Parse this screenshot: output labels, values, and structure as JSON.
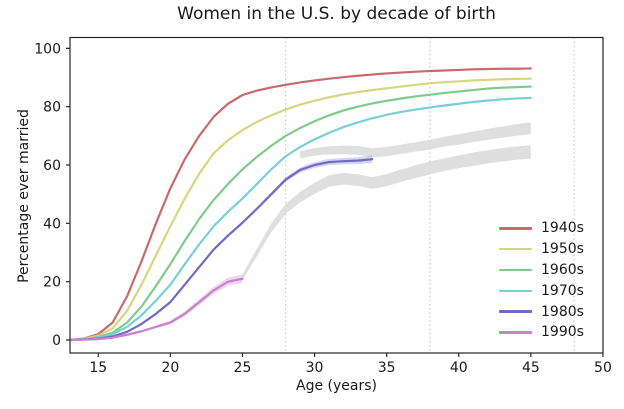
{
  "chart_data": {
    "type": "line",
    "title": "Women in the U.S. by decade of birth",
    "xlabel": "Age (years)",
    "ylabel": "Percentage ever married",
    "xlim": [
      13,
      50
    ],
    "ylim": [
      -5,
      104
    ],
    "xticks": [
      15,
      20,
      25,
      30,
      35,
      40,
      45,
      50
    ],
    "yticks": [
      0,
      20,
      40,
      60,
      80,
      100
    ],
    "vlines_dotted_x": [
      28,
      38,
      48
    ],
    "grid": "vertical dotted reference lines only",
    "legend_position": "lower right",
    "series": [
      {
        "name": "1940s",
        "color": "#c8696e",
        "x": [
          13,
          14,
          15,
          16,
          17,
          18,
          19,
          20,
          21,
          22,
          23,
          24,
          25,
          26,
          27,
          28,
          29,
          30,
          31,
          32,
          33,
          34,
          35,
          36,
          37,
          38,
          39,
          40,
          41,
          42,
          43,
          44,
          45
        ],
        "y": [
          0,
          0.5,
          2,
          6,
          15,
          27,
          40,
          52,
          62,
          70,
          76.5,
          81,
          84,
          85.5,
          86.6,
          87.5,
          88.3,
          89,
          89.6,
          90.1,
          90.6,
          91,
          91.4,
          91.7,
          92,
          92.2,
          92.4,
          92.6,
          92.8,
          92.9,
          93,
          93,
          93.1
        ]
      },
      {
        "name": "1950s",
        "color": "#d4d77e",
        "x": [
          13,
          14,
          15,
          16,
          17,
          18,
          19,
          20,
          21,
          22,
          23,
          24,
          25,
          26,
          27,
          28,
          29,
          30,
          31,
          32,
          33,
          34,
          35,
          36,
          37,
          38,
          39,
          40,
          41,
          42,
          43,
          44,
          45
        ],
        "y": [
          0,
          0.4,
          1.5,
          4,
          10,
          19,
          29,
          39,
          48.5,
          57,
          64,
          68.5,
          72,
          74.8,
          77,
          79,
          80.7,
          82,
          83.2,
          84.2,
          85,
          85.7,
          86.3,
          86.9,
          87.5,
          88,
          88.4,
          88.7,
          89,
          89.2,
          89.4,
          89.5,
          89.6
        ]
      },
      {
        "name": "1960s",
        "color": "#7fcb8c",
        "x": [
          13,
          14,
          15,
          16,
          17,
          18,
          19,
          20,
          21,
          22,
          23,
          24,
          25,
          26,
          27,
          28,
          29,
          30,
          31,
          32,
          33,
          34,
          35,
          36,
          37,
          38,
          39,
          40,
          41,
          42,
          43,
          44,
          45
        ],
        "y": [
          0,
          0.3,
          1,
          2.5,
          6,
          11.5,
          18.5,
          26,
          34,
          41.5,
          48,
          53.5,
          58.5,
          62.8,
          66.6,
          70,
          72.7,
          75,
          77,
          78.7,
          80,
          81.1,
          82,
          82.8,
          83.5,
          84.1,
          84.7,
          85.2,
          85.7,
          86.2,
          86.5,
          86.7,
          86.9
        ]
      },
      {
        "name": "1970s",
        "color": "#79cfd5",
        "x": [
          13,
          14,
          15,
          16,
          17,
          18,
          19,
          20,
          21,
          22,
          23,
          24,
          25,
          26,
          27,
          28,
          29,
          30,
          31,
          32,
          33,
          34,
          35,
          36,
          37,
          38,
          39,
          40,
          41,
          42,
          43,
          44,
          45
        ],
        "y": [
          0,
          0.3,
          0.8,
          2,
          4.5,
          8.5,
          13.5,
          19,
          26,
          32.8,
          39,
          44,
          48.5,
          53.5,
          58.5,
          63,
          66.2,
          68.8,
          71,
          73,
          74.6,
          76,
          77.2,
          78.2,
          79,
          79.7,
          80.4,
          81,
          81.6,
          82.1,
          82.5,
          82.8,
          83
        ]
      },
      {
        "name": "1980s",
        "color": "#6f6ac4",
        "x": [
          13,
          14,
          15,
          16,
          17,
          18,
          19,
          20,
          21,
          22,
          23,
          24,
          25,
          26,
          27,
          28,
          29,
          30,
          31,
          32,
          33,
          34
        ],
        "y": [
          0,
          0.2,
          0.5,
          1.2,
          2.8,
          5.5,
          9,
          13,
          19,
          25,
          31,
          35.8,
          40.2,
          45,
          50,
          55,
          58.3,
          60,
          61,
          61.3,
          61.5,
          62
        ]
      },
      {
        "name": "1990s",
        "color": "#c981cf",
        "x": [
          13,
          14,
          15,
          16,
          17,
          18,
          19,
          20,
          21,
          22,
          23,
          24,
          25
        ],
        "y": [
          0,
          0.1,
          0.3,
          0.8,
          1.8,
          3,
          4.5,
          6,
          9,
          13,
          17,
          20,
          21
        ]
      }
    ],
    "uncertainty_bands": [
      {
        "label": "1980s projection",
        "color": "#dcdcdc",
        "opacity": 0.9,
        "x": [
          29,
          30,
          31,
          32,
          33,
          34,
          35,
          36,
          37,
          38,
          39,
          40,
          41,
          42,
          43,
          44,
          45
        ],
        "center": [
          63.5,
          64.5,
          65,
          65.2,
          65,
          64.2,
          64.6,
          65.4,
          66.2,
          67,
          68,
          68.8,
          69.7,
          70.5,
          71.3,
          72,
          72.6
        ],
        "half_width": [
          1.2,
          1.3,
          1.4,
          1.5,
          1.5,
          1.5,
          1.6,
          1.6,
          1.6,
          1.7,
          1.7,
          1.8,
          1.8,
          1.9,
          1.9,
          2,
          2
        ]
      },
      {
        "label": "1990s projection",
        "color": "#dcdcdc",
        "opacity": 0.9,
        "x": [
          25,
          26,
          27,
          28,
          29,
          30,
          31,
          32,
          33,
          34,
          35,
          36,
          37,
          38,
          39,
          40,
          41,
          42,
          43,
          44,
          45
        ],
        "center": [
          21.5,
          30,
          38.5,
          45,
          49,
          52,
          54.5,
          55.3,
          54.8,
          53.8,
          54.8,
          56.3,
          57.7,
          59,
          60.1,
          61.1,
          62,
          62.8,
          63.5,
          64.1,
          64.5
        ],
        "half_width": [
          1,
          1.3,
          1.5,
          1.7,
          1.8,
          1.9,
          2,
          2,
          2,
          2,
          2.1,
          2.1,
          2.2,
          2.2,
          2.2,
          2.2,
          2.3,
          2.3,
          2.3,
          2.3,
          2.3
        ]
      },
      {
        "label": "1980s observed CI",
        "color": "#6f6ac4",
        "opacity": 0.28,
        "x": [
          26,
          27,
          28,
          29,
          30,
          31,
          32,
          33,
          34
        ],
        "center": [
          45,
          50,
          55,
          58.3,
          60,
          61,
          61.3,
          61.5,
          62
        ],
        "half_width": [
          0.5,
          0.6,
          0.8,
          0.9,
          1,
          1.1,
          1.1,
          1.2,
          1.3
        ]
      },
      {
        "label": "1990s observed CI",
        "color": "#c981cf",
        "opacity": 0.32,
        "x": [
          19,
          20,
          21,
          22,
          23,
          24,
          25
        ],
        "center": [
          4.5,
          6,
          9,
          13,
          17,
          20,
          21
        ],
        "half_width": [
          0.5,
          0.6,
          0.8,
          1,
          1.2,
          1.4,
          1.5
        ]
      }
    ]
  }
}
